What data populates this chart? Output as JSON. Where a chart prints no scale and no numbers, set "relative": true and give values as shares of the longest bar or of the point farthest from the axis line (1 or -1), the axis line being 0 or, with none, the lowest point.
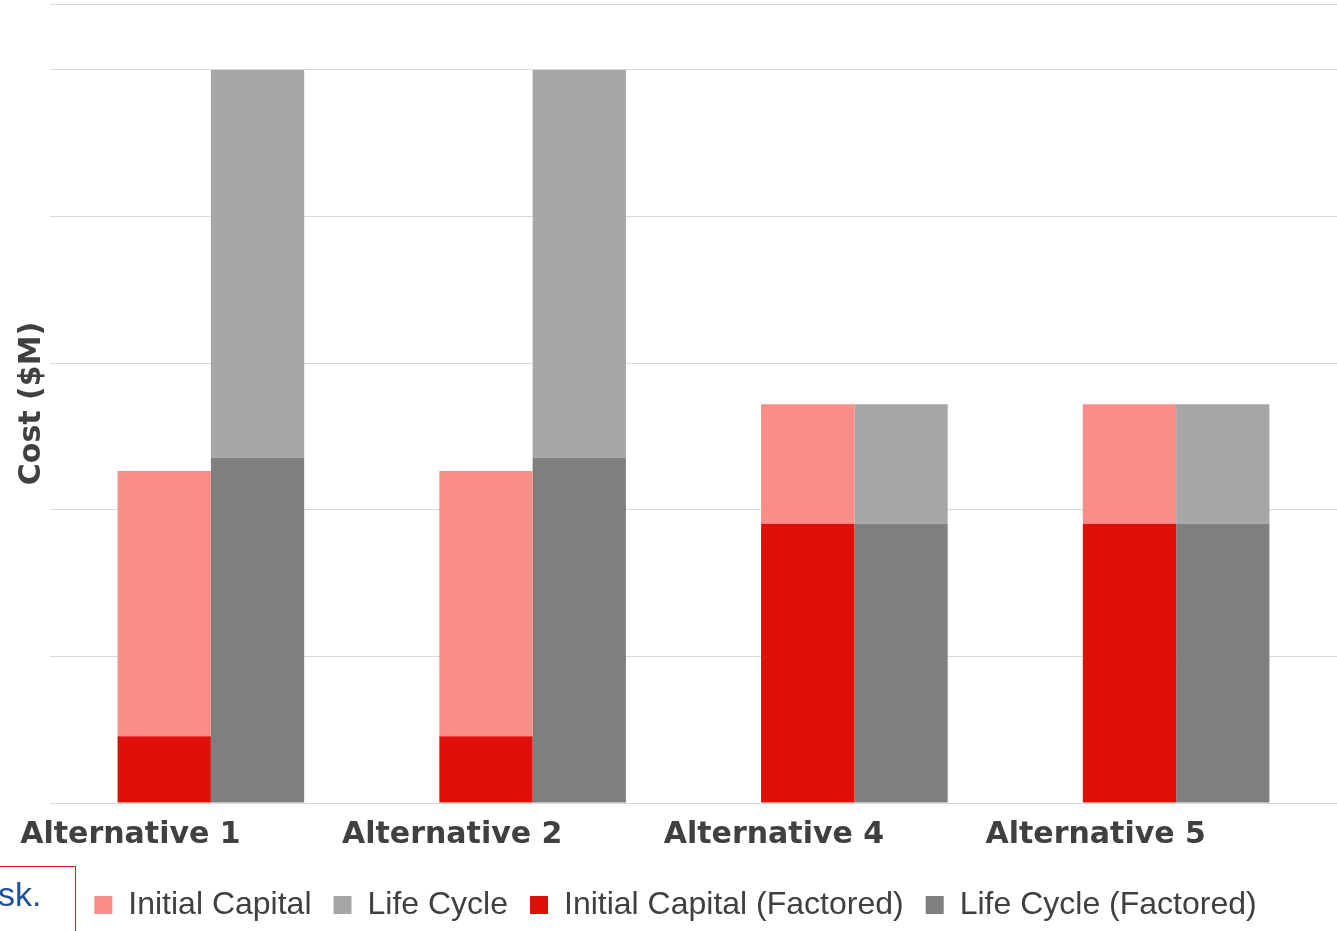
{
  "chart_data": {
    "type": "bar",
    "stacked": true,
    "relative": true,
    "ylabel": "Cost ($M)",
    "categories": [
      "Alternative 1",
      null,
      "Alternative 2",
      null,
      "Alternative 4",
      null,
      "Alternative 5",
      null
    ],
    "series": [
      {
        "name": "Initial Capital (Factored)",
        "color": "#de1008",
        "values": [
          0.091,
          null,
          0.091,
          null,
          0.381,
          null,
          0.381,
          null
        ]
      },
      {
        "name": "Initial Capital",
        "color": "#f98e88",
        "values": [
          0.362,
          null,
          0.362,
          null,
          0.163,
          null,
          0.163,
          null
        ]
      },
      {
        "name": "Life Cycle (Factored)",
        "color": "#7f7f7f",
        "values": [
          null,
          0.471,
          null,
          0.471,
          null,
          0.381,
          null,
          0.381
        ]
      },
      {
        "name": "Life Cycle",
        "color": "#a6a6a6",
        "values": [
          null,
          0.529,
          null,
          0.529,
          null,
          0.163,
          null,
          0.163
        ]
      }
    ],
    "grid": "y",
    "legend": "bottom",
    "annotations": [
      "sk."
    ]
  }
}
